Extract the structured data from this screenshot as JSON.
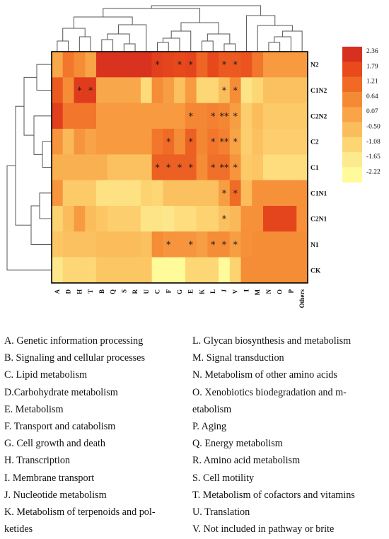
{
  "chart_data": {
    "type": "heatmap",
    "rows": [
      "N2",
      "C1N2",
      "C2N2",
      "C2",
      "C1",
      "C1N1",
      "C2N1",
      "N1",
      "CK"
    ],
    "columns": [
      "A",
      "D",
      "H",
      "T",
      "B",
      "Q",
      "S",
      "R",
      "U",
      "C",
      "F",
      "G",
      "E",
      "K",
      "L",
      "J",
      "V",
      "I",
      "M",
      "N",
      "O",
      "P",
      "Others"
    ],
    "values": [
      [
        0.0,
        1.0,
        0.6,
        0.1,
        2.3,
        2.3,
        2.3,
        2.3,
        2.3,
        2.0,
        1.9,
        1.8,
        1.9,
        1.3,
        1.8,
        1.5,
        1.5,
        1.6,
        1.0,
        0.3,
        0.3,
        0.3,
        0.3
      ],
      [
        1.5,
        0.6,
        2.1,
        2.1,
        0.0,
        0.0,
        0.0,
        0.0,
        -1.2,
        0.6,
        0.2,
        -0.6,
        0.3,
        -1.1,
        -1.1,
        -0.5,
        0.6,
        -1.5,
        -1.1,
        -0.6,
        -0.6,
        -0.6,
        -0.6
      ],
      [
        2.0,
        1.0,
        1.0,
        1.0,
        0.3,
        0.3,
        0.3,
        0.3,
        0.3,
        0.3,
        0.3,
        0.3,
        0.7,
        0.7,
        0.8,
        0.7,
        0.2,
        -0.9,
        -0.5,
        -0.8,
        -0.8,
        -0.8,
        -0.8
      ],
      [
        0.4,
        -0.4,
        0.4,
        0.1,
        0.3,
        0.3,
        0.3,
        0.3,
        0.3,
        1.0,
        1.2,
        0.6,
        1.4,
        0.7,
        1.0,
        0.8,
        0.1,
        -0.9,
        -0.6,
        -0.9,
        -0.9,
        -0.9,
        -0.9
      ],
      [
        -0.2,
        -0.2,
        -0.2,
        -0.2,
        -0.2,
        -0.6,
        -0.6,
        -0.6,
        -0.6,
        1.4,
        1.4,
        1.4,
        1.4,
        0.6,
        1.1,
        1.1,
        0.4,
        -0.8,
        -0.7,
        -1.3,
        -1.3,
        -1.3,
        -1.3
      ],
      [
        0.4,
        -0.8,
        -0.8,
        -0.8,
        -1.4,
        -1.4,
        -1.4,
        -1.4,
        -1.0,
        -1.1,
        -0.6,
        -0.6,
        -0.6,
        -0.6,
        -0.6,
        0.2,
        1.2,
        -0.5,
        0.5,
        0.5,
        0.5,
        0.5,
        0.5
      ],
      [
        -1.0,
        -0.5,
        0.3,
        -0.5,
        -0.7,
        -0.9,
        -0.9,
        -0.9,
        -1.5,
        -1.5,
        -1.6,
        -1.3,
        -1.3,
        -1.0,
        -1.0,
        -0.6,
        -0.4,
        0.5,
        0.5,
        1.9,
        1.9,
        1.9,
        0.5
      ],
      [
        -0.7,
        -0.6,
        -0.6,
        -0.6,
        -0.5,
        -0.5,
        -0.5,
        -0.5,
        -0.6,
        0.6,
        0.4,
        0.4,
        0.4,
        0.2,
        0.6,
        0.6,
        0.2,
        0.5,
        0.6,
        0.6,
        0.6,
        0.6,
        0.6
      ],
      [
        -1.6,
        -1.1,
        -1.1,
        -1.1,
        -0.7,
        -0.7,
        -0.7,
        -0.7,
        -0.7,
        -2.2,
        -2.2,
        -2.2,
        -1.1,
        -1.1,
        -1.1,
        -2.2,
        -1.0,
        0.6,
        0.6,
        0.6,
        0.6,
        0.6,
        0.6
      ]
    ],
    "significance": [
      [
        9,
        11,
        12,
        15,
        16
      ],
      [
        2,
        3,
        15,
        16
      ],
      [
        12,
        14,
        15,
        16
      ],
      [
        10,
        12,
        14,
        15,
        16
      ],
      [
        9,
        10,
        11,
        12,
        14,
        15,
        16
      ],
      [
        15,
        16
      ],
      [
        15
      ],
      [
        10,
        12,
        14,
        15,
        16
      ],
      []
    ],
    "significance_marks": {
      "0": [
        "*",
        "*",
        "*",
        "*",
        "*"
      ],
      "1": [
        "*",
        "*",
        "*",
        "*"
      ],
      "2": [
        "*",
        "*",
        "**",
        "*"
      ],
      "3": [
        "*",
        "*",
        "*",
        "**",
        "*"
      ],
      "4": [
        "*",
        "*",
        "*",
        "*",
        "*",
        "**",
        "*"
      ],
      "5": [
        "*",
        "*"
      ],
      "6": [
        "*"
      ],
      "7": [
        "*",
        "*",
        "*",
        "*",
        "*"
      ],
      "8": []
    },
    "colorbar": {
      "ticks": [
        "2.36",
        "1.79",
        "1.21",
        "0.64",
        "0.07",
        "-0.50",
        "-1.08",
        "-1.65",
        "-2.22"
      ],
      "range": [
        -2.22,
        2.36
      ],
      "colors": [
        "#d7301f",
        "#e84a1c",
        "#f06a26",
        "#f58a35",
        "#f8a447",
        "#fbbd5c",
        "#fdd674",
        "#fde98e",
        "#fffb9a"
      ]
    },
    "row_dendrogram": true,
    "column_dendrogram": true,
    "grid": false
  },
  "legend_items": {
    "left": [
      "A. Genetic information processing",
      "B. Signaling and cellular processes",
      "C. Lipid metabolism",
      "D.Carbohydrate metabolism",
      "E. Metabolism",
      "F. Transport and catabolism",
      "G. Cell growth and death",
      "H. Transcription",
      "I. Membrane transport",
      "J. Nucleotide metabolism",
      "K. Metabolism of terpenoids and pol-",
      "ketides"
    ],
    "right": [
      "L. Glycan biosynthesis and metabolism",
      "M. Signal transduction",
      "N. Metabolism of other amino acids",
      "O. Xenobiotics biodegradation and m-",
      "etabolism",
      "P. Aging",
      "Q. Energy metabolism",
      "R. Amino acid metabolism",
      "S. Cell motility",
      "T. Metabolism of cofactors and vitamins",
      "U. Translation",
      "V. Not included in pathway or brite"
    ]
  }
}
